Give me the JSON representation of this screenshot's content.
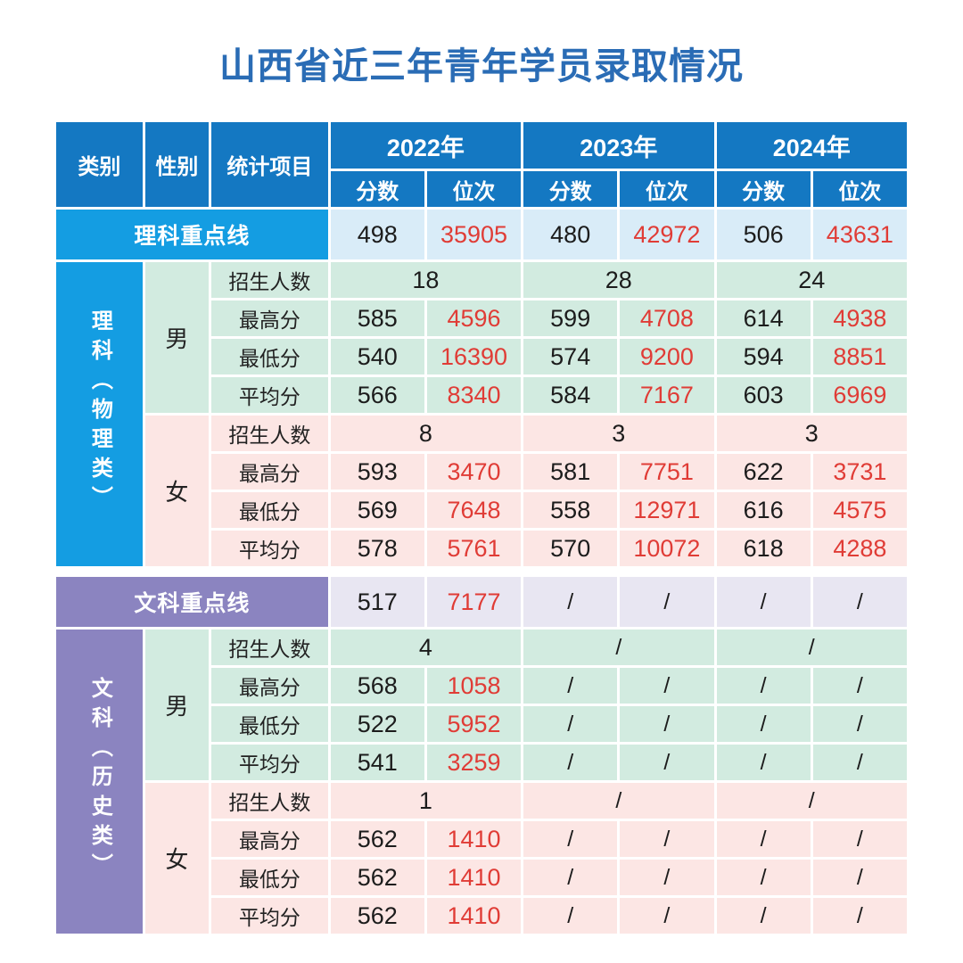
{
  "title": "山西省近三年青年学员录取情况",
  "colors": {
    "title_blue": "#2a6cb5",
    "header_blue": "#1478c2",
    "science_accent": "#149de2",
    "science_light": "#d9ecf8",
    "liberal_accent": "#8b84c0",
    "liberal_light": "#e8e6f2",
    "male_green": "#d2ebe0",
    "female_pink": "#fce6e4",
    "rank_red": "#e03c36"
  },
  "header": {
    "category": "类别",
    "gender": "性别",
    "stat_item": "统计项目",
    "years": [
      "2022年",
      "2023年",
      "2024年"
    ],
    "score": "分数",
    "rank": "位次"
  },
  "science": {
    "cutoff_label": "理科重点线",
    "cutoff": [
      "498",
      "35905",
      "480",
      "42972",
      "506",
      "43631"
    ],
    "category": "理科（物理类）",
    "male": {
      "gender": "男",
      "enroll_label": "招生人数",
      "enroll": [
        "18",
        "28",
        "24"
      ],
      "rows": [
        {
          "label": "最高分",
          "v": [
            "585",
            "4596",
            "599",
            "4708",
            "614",
            "4938"
          ]
        },
        {
          "label": "最低分",
          "v": [
            "540",
            "16390",
            "574",
            "9200",
            "594",
            "8851"
          ]
        },
        {
          "label": "平均分",
          "v": [
            "566",
            "8340",
            "584",
            "7167",
            "603",
            "6969"
          ]
        }
      ]
    },
    "female": {
      "gender": "女",
      "enroll_label": "招生人数",
      "enroll": [
        "8",
        "3",
        "3"
      ],
      "rows": [
        {
          "label": "最高分",
          "v": [
            "593",
            "3470",
            "581",
            "7751",
            "622",
            "3731"
          ]
        },
        {
          "label": "最低分",
          "v": [
            "569",
            "7648",
            "558",
            "12971",
            "616",
            "4575"
          ]
        },
        {
          "label": "平均分",
          "v": [
            "578",
            "5761",
            "570",
            "10072",
            "618",
            "4288"
          ]
        }
      ]
    }
  },
  "liberal": {
    "cutoff_label": "文科重点线",
    "cutoff": [
      "517",
      "7177",
      "/",
      "/",
      "/",
      "/"
    ],
    "category": "文科（历史类）",
    "male": {
      "gender": "男",
      "enroll_label": "招生人数",
      "enroll": [
        "4",
        "/",
        "/"
      ],
      "rows": [
        {
          "label": "最高分",
          "v": [
            "568",
            "1058",
            "/",
            "/",
            "/",
            "/"
          ]
        },
        {
          "label": "最低分",
          "v": [
            "522",
            "5952",
            "/",
            "/",
            "/",
            "/"
          ]
        },
        {
          "label": "平均分",
          "v": [
            "541",
            "3259",
            "/",
            "/",
            "/",
            "/"
          ]
        }
      ]
    },
    "female": {
      "gender": "女",
      "enroll_label": "招生人数",
      "enroll": [
        "1",
        "/",
        "/"
      ],
      "rows": [
        {
          "label": "最高分",
          "v": [
            "562",
            "1410",
            "/",
            "/",
            "/",
            "/"
          ]
        },
        {
          "label": "最低分",
          "v": [
            "562",
            "1410",
            "/",
            "/",
            "/",
            "/"
          ]
        },
        {
          "label": "平均分",
          "v": [
            "562",
            "1410",
            "/",
            "/",
            "/",
            "/"
          ]
        }
      ]
    }
  }
}
